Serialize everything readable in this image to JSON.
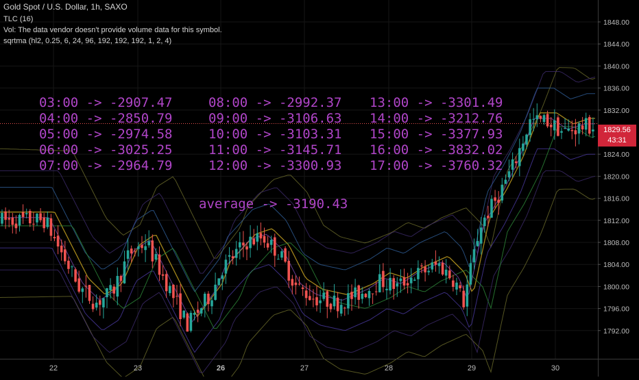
{
  "header": {
    "title": "Gold Spot / U.S. Dollar, 1h, SAXO",
    "line2": "TLC (16)",
    "line3": "Vol: The data vendor doesn't provide volume data for this symbol.",
    "line4": "sqrtma (hl2, 0.25, 6, 24, 96, 192, 192, 192, 1, 2, 4)"
  },
  "annotations": {
    "col1": [
      "03:00 -> -2907.47",
      "04:00 -> -2850.79",
      "05:00 -> -2974.58",
      "06:00 -> -3025.25",
      "07:00 -> -2964.79"
    ],
    "col2": [
      "08:00 -> -2992.37",
      "09:00 -> -3106.63",
      "10:00 -> -3103.31",
      "11:00 -> -3145.71",
      "12:00 -> -3300.93"
    ],
    "col3": [
      "13:00 -> -3301.49",
      "14:00 -> -3212.76",
      "15:00 -> -3377.93",
      "16:00 -> -3832.02",
      "17:00 -> -3760.32"
    ],
    "average": "average -> -3190.43"
  },
  "price_tag": {
    "price": "1829.56",
    "countdown": "43:31"
  },
  "colors": {
    "background": "#000000",
    "bull": "#26a69a",
    "bear": "#ef5350",
    "text": "#d6d6d6",
    "annotation": "#b045c8",
    "price_line": "#ef5350"
  },
  "chart_data": {
    "type": "candlestick",
    "timeframe": "1h",
    "ylim": [
      1790,
      1850
    ],
    "y_ticks": [
      "1848.00",
      "1844.00",
      "1840.00",
      "1836.00",
      "1832.00",
      "1824.00",
      "1820.00",
      "1816.00",
      "1812.00",
      "1808.00",
      "1804.00",
      "1800.00",
      "1796.00",
      "1792.00"
    ],
    "x_ticks": [
      "22",
      "23",
      "26",
      "27",
      "28",
      "29",
      "30"
    ],
    "last_price": 1829.56,
    "close_path": [
      {
        "day": "21.9",
        "close": 1812
      },
      {
        "day": "22.1",
        "close": 1806
      },
      {
        "day": "22.3",
        "close": 1800
      },
      {
        "day": "22.5",
        "close": 1797
      },
      {
        "day": "22.7",
        "close": 1799
      },
      {
        "day": "22.9",
        "close": 1806
      },
      {
        "day": "23.1",
        "close": 1808
      },
      {
        "day": "23.4",
        "close": 1799
      },
      {
        "day": "23.6",
        "close": 1793
      },
      {
        "day": "23.9",
        "close": 1799
      },
      {
        "day": "26.0",
        "close": 1803
      },
      {
        "day": "26.3",
        "close": 1808
      },
      {
        "day": "26.5",
        "close": 1809
      },
      {
        "day": "26.7",
        "close": 1806
      },
      {
        "day": "26.9",
        "close": 1800
      },
      {
        "day": "27.1",
        "close": 1798
      },
      {
        "day": "27.4",
        "close": 1797
      },
      {
        "day": "27.7",
        "close": 1799
      },
      {
        "day": "27.9",
        "close": 1801
      },
      {
        "day": "28.1",
        "close": 1800
      },
      {
        "day": "28.3",
        "close": 1802
      },
      {
        "day": "28.6",
        "close": 1804
      },
      {
        "day": "28.8",
        "close": 1801
      },
      {
        "day": "28.9",
        "close": 1797
      },
      {
        "day": "29.1",
        "close": 1811
      },
      {
        "day": "29.3",
        "close": 1816
      },
      {
        "day": "29.5",
        "close": 1822
      },
      {
        "day": "29.7",
        "close": 1830
      },
      {
        "day": "29.9",
        "close": 1830
      },
      {
        "day": "30.1",
        "close": 1828
      },
      {
        "day": "30.3",
        "close": 1829
      }
    ]
  }
}
